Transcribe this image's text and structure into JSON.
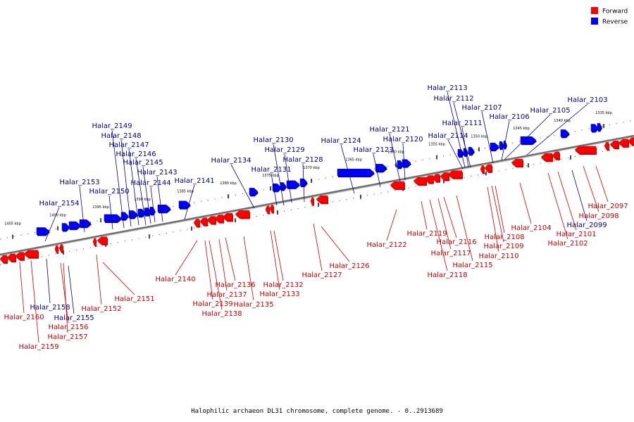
{
  "caption": "Halophilic archaeon DL31 chromosome, complete genome. - 0..2913689",
  "legend": [
    {
      "label": "Forward",
      "color": "#ff0000"
    },
    {
      "label": "Reverse",
      "color": "#0000ff"
    }
  ],
  "colors": {
    "forward": "#ff0000",
    "forward_dark": "#cc0000",
    "reverse": "#0000ff",
    "reverse_dark": "#0000b0",
    "axis": "#888888",
    "label_forward": "#cc0000",
    "label_reverse": "#00008b"
  },
  "ticks": [
    "1405 kbp",
    "1400 kbp",
    "1395 kbp",
    "1390 kbp",
    "1385 kbp",
    "1380 kbp",
    "1375 kbp",
    "1370 kbp",
    "1365 kbp",
    "1360 kbp",
    "1355 kbp",
    "1350 kbp",
    "1345 kbp",
    "1340 kbp",
    "1335 kbp"
  ],
  "reverse_genes": [
    "Halar_2154",
    "Halar_2153",
    "Halar_2150",
    "Halar_2149",
    "Halar_2148",
    "Halar_2147",
    "Halar_2146",
    "Halar_2145",
    "Halar_2143",
    "Halar_2144",
    "Halar_2141",
    "Halar_2134",
    "Halar_2131",
    "Halar_2130",
    "Halar_2129",
    "Halar_2128",
    "Halar_2124",
    "Halar_2123",
    "Halar_2121",
    "Halar_2120",
    "Halar_2114",
    "Halar_2111",
    "Halar_2113",
    "Halar_2112",
    "Halar_2107",
    "Halar_2106",
    "Halar_2105",
    "Halar_2103",
    "Halar_2158",
    "Halar_2155",
    "Halar_2099"
  ],
  "forward_genes": [
    "Halar_2160",
    "Halar_2159",
    "Halar_2156",
    "Halar_2157",
    "Halar_2152",
    "Halar_2151",
    "Halar_2140",
    "Halar_2139",
    "Halar_2138",
    "Halar_2137",
    "Halar_2136",
    "Halar_2135",
    "Halar_2133",
    "Halar_2132",
    "Halar_2127",
    "Halar_2126",
    "Halar_2122",
    "Halar_2119",
    "Halar_2118",
    "Halar_2117",
    "Halar_2116",
    "Halar_2115",
    "Halar_2110",
    "Halar_2109",
    "Halar_2108",
    "Halar_2104",
    "Halar_2102",
    "Halar_2101",
    "Halar_2098",
    "Halar_2097"
  ]
}
